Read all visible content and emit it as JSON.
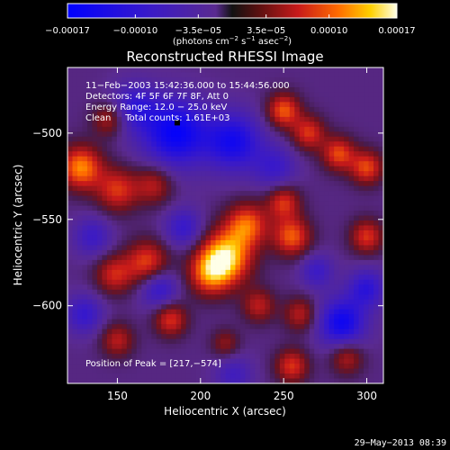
{
  "chart_data": {
    "type": "heatmap",
    "title": "Reconstructed RHESSI Image",
    "xlabel": "Heliocentric X (arcsec)",
    "ylabel": "Heliocentric Y (arcsec)",
    "xlim": [
      120,
      310
    ],
    "ylim": [
      -645,
      -462
    ],
    "x_ticks": [
      {
        "value": 150,
        "label": "150"
      },
      {
        "value": 200,
        "label": "200"
      },
      {
        "value": 250,
        "label": "250"
      },
      {
        "value": 300,
        "label": "300"
      }
    ],
    "y_ticks": [
      {
        "value": -500,
        "label": "−500"
      },
      {
        "value": -550,
        "label": "−550"
      },
      {
        "value": -600,
        "label": "−600"
      }
    ],
    "colorbar": {
      "range": [
        -0.00017,
        0.00017
      ],
      "tick_values": [
        -0.00017,
        -0.0001,
        -3.5e-05,
        3.5e-05,
        0.0001,
        0.00017
      ],
      "tick_labels": [
        "−0.00017",
        "−0.00010",
        "−3.5e−05",
        "3.5e−05",
        "0.00010",
        "0.00017"
      ],
      "units_text": "(photons cm",
      "units_exp1": "−2",
      "units_mid": " s",
      "units_exp2": "−1",
      "units_mid2": " asec",
      "units_exp3": "−2",
      "units_end": ")"
    },
    "annotations": [
      "11−Feb−2003 15:42:36.000 to 15:44:56.000",
      "Detectors: 4F 5F 6F 7F 8F, Att 0",
      "Energy Range: 12.0 − 25.0 keV",
      "Clean     Total counts: 1.61E+03"
    ],
    "peak_label": "Position of Peak = [217,−574]",
    "peak": [
      217,
      -574
    ],
    "blobs": [
      {
        "x": 215,
        "y": -572,
        "v": 0.00017,
        "s": 11
      },
      {
        "x": 228,
        "y": -553,
        "v": 0.00012,
        "s": 9
      },
      {
        "x": 205,
        "y": -582,
        "v": 0.0001,
        "s": 9
      },
      {
        "x": 168,
        "y": -575,
        "v": 0.00011,
        "s": 9
      },
      {
        "x": 148,
        "y": -582,
        "v": 9e-05,
        "s": 8
      },
      {
        "x": 128,
        "y": -520,
        "v": 0.00014,
        "s": 9
      },
      {
        "x": 150,
        "y": -533,
        "v": 0.0001,
        "s": 9
      },
      {
        "x": 172,
        "y": -530,
        "v": 8e-05,
        "s": 8
      },
      {
        "x": 145,
        "y": -492,
        "v": 8e-05,
        "s": 7
      },
      {
        "x": 250,
        "y": -487,
        "v": 0.00012,
        "s": 7
      },
      {
        "x": 265,
        "y": -500,
        "v": 0.0001,
        "s": 7
      },
      {
        "x": 283,
        "y": -512,
        "v": 0.00011,
        "s": 7
      },
      {
        "x": 300,
        "y": -520,
        "v": 0.00011,
        "s": 7
      },
      {
        "x": 300,
        "y": -560,
        "v": 0.0001,
        "s": 7
      },
      {
        "x": 255,
        "y": -560,
        "v": 0.00012,
        "s": 8
      },
      {
        "x": 250,
        "y": -540,
        "v": 0.0001,
        "s": 7
      },
      {
        "x": 235,
        "y": -600,
        "v": 8e-05,
        "s": 7
      },
      {
        "x": 260,
        "y": -605,
        "v": 8e-05,
        "s": 7
      },
      {
        "x": 182,
        "y": -608,
        "v": 0.0001,
        "s": 7
      },
      {
        "x": 150,
        "y": -620,
        "v": 8e-05,
        "s": 7
      },
      {
        "x": 255,
        "y": -635,
        "v": 0.0001,
        "s": 7
      },
      {
        "x": 288,
        "y": -630,
        "v": 8e-05,
        "s": 7
      },
      {
        "x": 215,
        "y": -622,
        "v": 6e-05,
        "s": 6
      },
      {
        "x": 185,
        "y": -500,
        "v": -0.00014,
        "s": 14
      },
      {
        "x": 220,
        "y": -505,
        "v": -0.00012,
        "s": 12
      },
      {
        "x": 160,
        "y": -485,
        "v": -8e-05,
        "s": 10
      },
      {
        "x": 245,
        "y": -520,
        "v": -7e-05,
        "s": 9
      },
      {
        "x": 285,
        "y": -610,
        "v": -0.00013,
        "s": 10
      },
      {
        "x": 300,
        "y": -590,
        "v": -9e-05,
        "s": 8
      },
      {
        "x": 175,
        "y": -590,
        "v": -9e-05,
        "s": 8
      },
      {
        "x": 190,
        "y": -555,
        "v": -8e-05,
        "s": 8
      },
      {
        "x": 135,
        "y": -560,
        "v": -7e-05,
        "s": 8
      },
      {
        "x": 130,
        "y": -605,
        "v": -8e-05,
        "s": 8
      },
      {
        "x": 220,
        "y": -640,
        "v": -6e-05,
        "s": 8
      },
      {
        "x": 270,
        "y": -580,
        "v": -7e-05,
        "s": 7
      }
    ]
  },
  "footer": {
    "timestamp": "29−May−2013 08:39"
  }
}
